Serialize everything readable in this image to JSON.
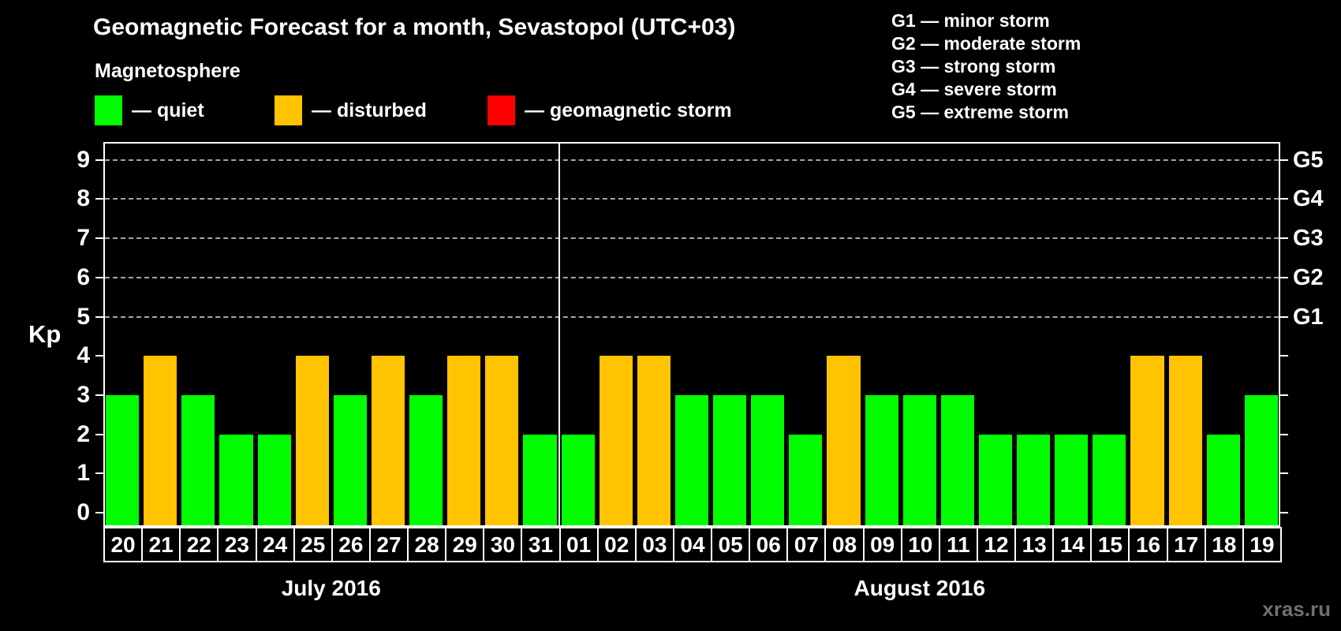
{
  "title": "Geomagnetic Forecast for a month, Sevastopol (UTC+03)",
  "magnetosphere_legend": {
    "heading": "Magnetosphere",
    "items": [
      {
        "key": "quiet",
        "label": "— quiet",
        "color": "#00fe00"
      },
      {
        "key": "disturbed",
        "label": "— disturbed",
        "color": "#ffc300"
      },
      {
        "key": "storm",
        "label": "— geomagnetic storm",
        "color": "#ff0000"
      }
    ]
  },
  "storm_scale_legend": {
    "items": [
      "G1 — minor storm",
      "G2 — moderate storm",
      "G3 — strong storm",
      "G4 — severe storm",
      "G5 — extreme storm"
    ]
  },
  "watermark": "xras.ru",
  "chart_data": {
    "type": "bar",
    "title": "Geomagnetic Forecast for a month, Sevastopol (UTC+03)",
    "ylabel": "Kp",
    "ylim": [
      0,
      9.7
    ],
    "y_ticks": [
      0,
      1,
      2,
      3,
      4,
      5,
      6,
      7,
      8,
      9
    ],
    "grid": "horizontal dashed lines at storm levels only",
    "gridlines_at_kp": [
      5,
      6,
      7,
      8,
      9
    ],
    "right_axis": [
      {
        "label": "G1",
        "kp": 5
      },
      {
        "label": "G2",
        "kp": 6
      },
      {
        "label": "G3",
        "kp": 7
      },
      {
        "label": "G4",
        "kp": 8
      },
      {
        "label": "G5",
        "kp": 9
      }
    ],
    "legend_position": "top",
    "months": [
      {
        "label": "July 2016",
        "days": [
          {
            "day": "20",
            "kp": 3,
            "status": "quiet"
          },
          {
            "day": "21",
            "kp": 4,
            "status": "disturbed"
          },
          {
            "day": "22",
            "kp": 3,
            "status": "quiet"
          },
          {
            "day": "23",
            "kp": 2,
            "status": "quiet"
          },
          {
            "day": "24",
            "kp": 2,
            "status": "quiet"
          },
          {
            "day": "25",
            "kp": 4,
            "status": "disturbed"
          },
          {
            "day": "26",
            "kp": 3,
            "status": "quiet"
          },
          {
            "day": "27",
            "kp": 4,
            "status": "disturbed"
          },
          {
            "day": "28",
            "kp": 3,
            "status": "quiet"
          },
          {
            "day": "29",
            "kp": 4,
            "status": "disturbed"
          },
          {
            "day": "30",
            "kp": 4,
            "status": "disturbed"
          },
          {
            "day": "31",
            "kp": 2,
            "status": "quiet"
          }
        ]
      },
      {
        "label": "August 2016",
        "days": [
          {
            "day": "01",
            "kp": 2,
            "status": "quiet"
          },
          {
            "day": "02",
            "kp": 4,
            "status": "disturbed"
          },
          {
            "day": "03",
            "kp": 4,
            "status": "disturbed"
          },
          {
            "day": "04",
            "kp": 3,
            "status": "quiet"
          },
          {
            "day": "05",
            "kp": 3,
            "status": "quiet"
          },
          {
            "day": "06",
            "kp": 3,
            "status": "quiet"
          },
          {
            "day": "07",
            "kp": 2,
            "status": "quiet"
          },
          {
            "day": "08",
            "kp": 4,
            "status": "disturbed"
          },
          {
            "day": "09",
            "kp": 3,
            "status": "quiet"
          },
          {
            "day": "10",
            "kp": 3,
            "status": "quiet"
          },
          {
            "day": "11",
            "kp": 3,
            "status": "quiet"
          },
          {
            "day": "12",
            "kp": 2,
            "status": "quiet"
          },
          {
            "day": "13",
            "kp": 2,
            "status": "quiet"
          },
          {
            "day": "14",
            "kp": 2,
            "status": "quiet"
          },
          {
            "day": "15",
            "kp": 2,
            "status": "quiet"
          },
          {
            "day": "16",
            "kp": 4,
            "status": "disturbed"
          },
          {
            "day": "17",
            "kp": 4,
            "status": "disturbed"
          },
          {
            "day": "18",
            "kp": 2,
            "status": "quiet"
          },
          {
            "day": "19",
            "kp": 3,
            "status": "quiet"
          }
        ]
      }
    ]
  }
}
